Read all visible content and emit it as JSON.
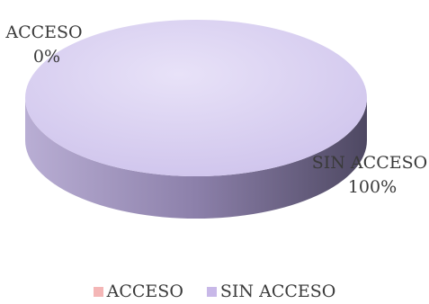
{
  "chart_data": {
    "type": "pie",
    "title": "",
    "categories": [
      "ACCESO",
      "SIN ACCESO"
    ],
    "values": [
      0,
      100
    ],
    "data_labels": [
      {
        "name": "ACCESO",
        "value": "0%"
      },
      {
        "name": "SIN ACCESO",
        "value": "100%"
      }
    ],
    "legend": {
      "placement": "bottom",
      "entries": [
        {
          "name": "ACCESO",
          "color": "#f4b6b6"
        },
        {
          "name": "SIN ACCESO",
          "color": "#c8b8e8"
        }
      ]
    },
    "colors": {
      "ACCESO": "#f4b6b6",
      "SIN ACCESO_top": "#dcd2f2",
      "SIN ACCESO_side": "#8a7ea8"
    },
    "style": "3d"
  }
}
